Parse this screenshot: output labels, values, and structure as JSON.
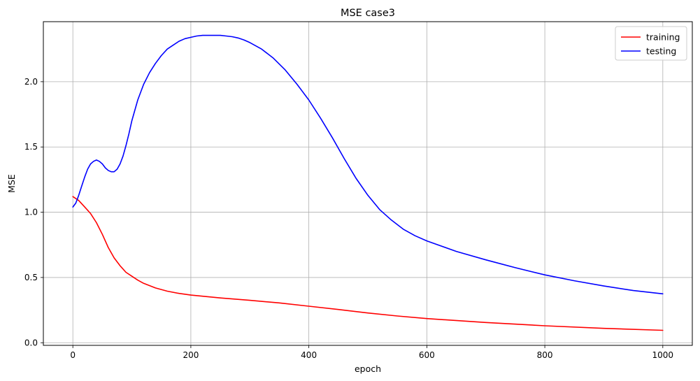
{
  "chart_data": {
    "type": "line",
    "title": "MSE case3",
    "xlabel": "epoch",
    "ylabel": "MSE",
    "xlim": [
      -50,
      1050
    ],
    "ylim": [
      -0.02,
      2.46
    ],
    "xticks": [
      0,
      200,
      400,
      600,
      800,
      1000
    ],
    "xtick_labels": [
      "0",
      "200",
      "400",
      "600",
      "800",
      "1000"
    ],
    "yticks": [
      0.0,
      0.5,
      1.0,
      1.5,
      2.0
    ],
    "ytick_labels": [
      "0.0",
      "0.5",
      "1.0",
      "1.5",
      "2.0"
    ],
    "grid": true,
    "legend_position": "top-right",
    "series": [
      {
        "name": "training",
        "color": "#ff0000",
        "x": [
          0,
          10,
          20,
          30,
          40,
          50,
          60,
          70,
          80,
          90,
          100,
          110,
          120,
          140,
          160,
          180,
          200,
          250,
          300,
          350,
          400,
          450,
          500,
          550,
          600,
          700,
          800,
          900,
          1000
        ],
        "y": [
          1.12,
          1.09,
          1.04,
          0.99,
          0.92,
          0.83,
          0.73,
          0.65,
          0.59,
          0.54,
          0.51,
          0.48,
          0.455,
          0.42,
          0.395,
          0.378,
          0.365,
          0.343,
          0.325,
          0.305,
          0.28,
          0.255,
          0.228,
          0.205,
          0.185,
          0.155,
          0.13,
          0.11,
          0.095
        ]
      },
      {
        "name": "testing",
        "color": "#0000ff",
        "x": [
          0,
          5,
          10,
          15,
          20,
          25,
          30,
          35,
          40,
          45,
          50,
          55,
          60,
          65,
          70,
          75,
          80,
          85,
          90,
          95,
          100,
          110,
          120,
          130,
          140,
          150,
          160,
          170,
          180,
          190,
          200,
          210,
          220,
          230,
          240,
          250,
          260,
          270,
          280,
          290,
          300,
          320,
          340,
          360,
          380,
          400,
          420,
          440,
          460,
          480,
          500,
          520,
          540,
          560,
          580,
          600,
          650,
          700,
          750,
          800,
          850,
          900,
          950,
          1000
        ],
        "y": [
          1.04,
          1.07,
          1.13,
          1.2,
          1.27,
          1.33,
          1.37,
          1.39,
          1.4,
          1.39,
          1.37,
          1.34,
          1.32,
          1.31,
          1.31,
          1.33,
          1.37,
          1.43,
          1.51,
          1.6,
          1.7,
          1.86,
          1.98,
          2.07,
          2.14,
          2.2,
          2.25,
          2.28,
          2.31,
          2.33,
          2.34,
          2.35,
          2.355,
          2.355,
          2.355,
          2.355,
          2.35,
          2.345,
          2.335,
          2.32,
          2.3,
          2.25,
          2.18,
          2.09,
          1.98,
          1.86,
          1.72,
          1.57,
          1.41,
          1.26,
          1.13,
          1.02,
          0.94,
          0.87,
          0.82,
          0.78,
          0.7,
          0.635,
          0.575,
          0.52,
          0.475,
          0.435,
          0.4,
          0.375
        ]
      }
    ]
  }
}
